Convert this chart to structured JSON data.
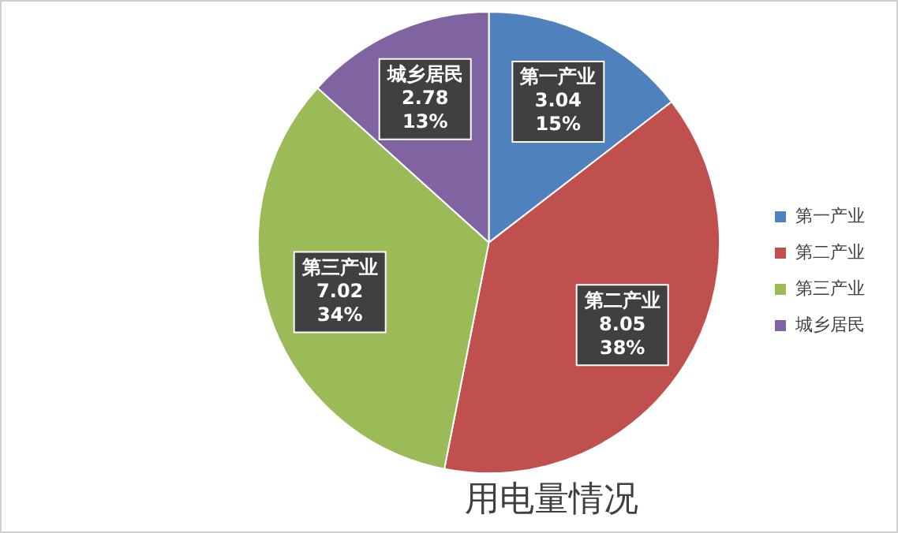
{
  "chart_data": {
    "type": "pie",
    "title": "用电量情况",
    "categories": [
      "第一产业",
      "第二产业",
      "第三产业",
      "城乡居民"
    ],
    "values": [
      3.04,
      8.05,
      7.02,
      2.78
    ],
    "colors": [
      "#4f81bd",
      "#c0504d",
      "#9bbb59",
      "#8064a2"
    ],
    "value_labels": [
      "第一产业\n3.04\n15%",
      "第二产业\n8.05\n38%",
      "第三产业\n7.02\n34%",
      "城乡居民\n2.78\n13%"
    ],
    "legend": "right"
  }
}
